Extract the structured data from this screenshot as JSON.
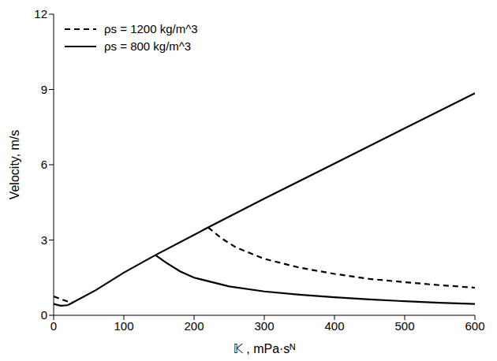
{
  "chart_data": {
    "type": "line",
    "x_label": "𝕂 , mPa·sᴺ",
    "y_label": "Velocity, m/s",
    "xlim": [
      0,
      600
    ],
    "xticks": [
      0,
      100,
      200,
      300,
      400,
      500,
      600
    ],
    "ylim": [
      0,
      12
    ],
    "yticks": [
      0,
      3,
      6,
      9,
      12
    ],
    "grid": false,
    "legend": "upper left",
    "series": [
      {
        "name": "ρs = 1200 kg/m^3",
        "color": "#000000",
        "line_style": "dashed",
        "x": [
          0,
          10,
          20,
          28,
          100,
          220,
          240,
          260,
          300,
          350,
          400,
          450,
          500,
          550,
          600
        ],
        "values": [
          0.75,
          0.65,
          0.55,
          0.5,
          null,
          3.5,
          3.05,
          2.7,
          2.25,
          1.9,
          1.65,
          1.45,
          1.32,
          1.2,
          1.1
        ]
      },
      {
        "name": "ρs = 800 kg/m^3",
        "color": "#000000",
        "line_style": "solid",
        "x": [
          0,
          10,
          20,
          80,
          145,
          160,
          180,
          200,
          250,
          300,
          350,
          400,
          450,
          500,
          550,
          600
        ],
        "values": [
          0.45,
          0.38,
          0.4,
          null,
          2.4,
          2.1,
          1.75,
          1.5,
          1.15,
          0.95,
          0.82,
          0.72,
          0.63,
          0.56,
          0.5,
          0.45
        ]
      },
      {
        "color": "#000000",
        "line_style": "solid",
        "x": [
          20,
          60,
          100,
          145,
          220,
          300,
          400,
          500,
          600
        ],
        "values": [
          0.4,
          1.0,
          1.7,
          2.4,
          3.5,
          4.65,
          6.05,
          7.45,
          8.85
        ]
      }
    ]
  }
}
